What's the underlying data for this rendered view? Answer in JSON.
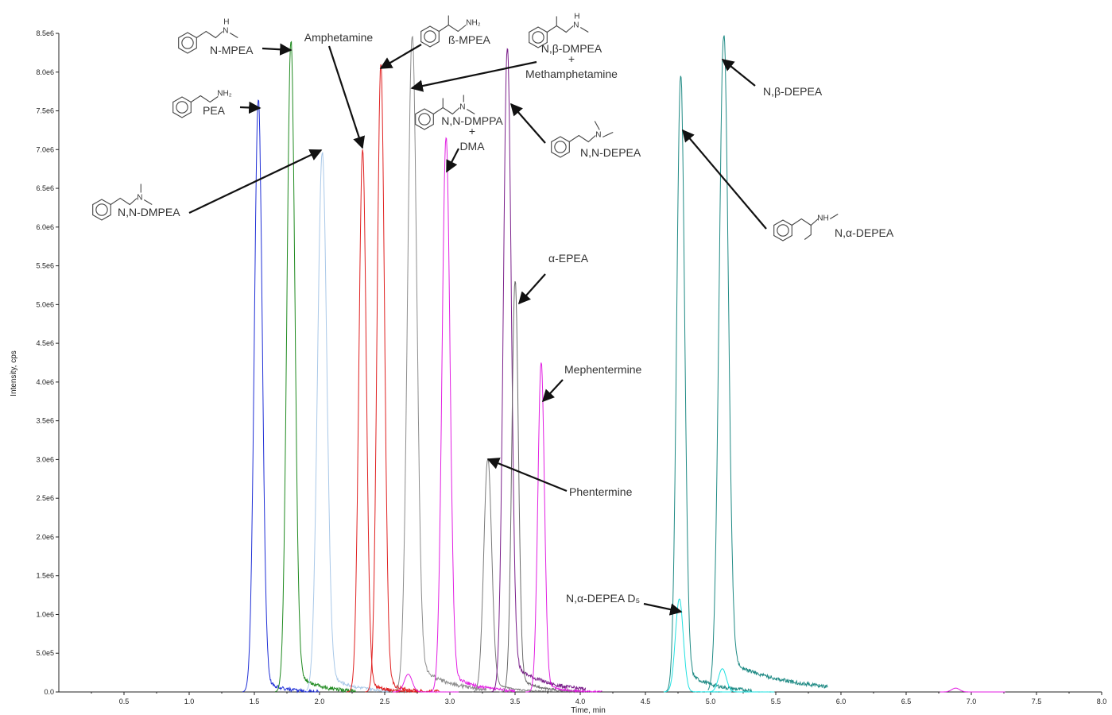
{
  "chart_data": {
    "type": "line",
    "xlabel": "Time, min",
    "ylabel": "Intensity, cps",
    "xlim": [
      0,
      8.0
    ],
    "ylim": [
      0,
      8500000
    ],
    "xticks": [
      "0.5",
      "1.0",
      "1.5",
      "2.0",
      "2.5",
      "3.0",
      "3.5",
      "4.0",
      "4.5",
      "5.0",
      "5.5",
      "6.0",
      "6.5",
      "7.0",
      "7.5",
      "8.0"
    ],
    "xtick_values": [
      0.5,
      1.0,
      1.5,
      2.0,
      2.5,
      3.0,
      3.5,
      4.0,
      4.5,
      5.0,
      5.5,
      6.0,
      6.5,
      7.0,
      7.5,
      8.0
    ],
    "yticks": [
      "0.0",
      "5.0e5",
      "1.0e6",
      "1.5e6",
      "2.0e6",
      "2.5e6",
      "3.0e6",
      "3.5e6",
      "4.0e6",
      "4.5e6",
      "5.0e6",
      "5.5e6",
      "6.0e6",
      "6.5e6",
      "7.0e6",
      "7.5e6",
      "8.0e6",
      "8.5e6"
    ],
    "ytick_values": [
      0,
      500000,
      1000000,
      1500000,
      2000000,
      2500000,
      3000000,
      3500000,
      4000000,
      4500000,
      5000000,
      5500000,
      6000000,
      6500000,
      7000000,
      7500000,
      8000000,
      8500000
    ],
    "peaks": [
      {
        "rt": 1.53,
        "height": 7650000,
        "color": "#1f2fd6",
        "w": 0.03,
        "tail": 0.12,
        "ta": 0.03
      },
      {
        "rt": 1.78,
        "height": 8400000,
        "color": "#1f8a1f",
        "w": 0.03,
        "tail": 0.15,
        "ta": 0.04
      },
      {
        "rt": 2.02,
        "height": 6950000,
        "color": "#a9c8e8",
        "w": 0.035,
        "tail": 0.18,
        "ta": 0.04
      },
      {
        "rt": 2.33,
        "height": 7000000,
        "color": "#e02020",
        "w": 0.028,
        "tail": 0.1,
        "ta": 0.03
      },
      {
        "rt": 2.47,
        "height": 8100000,
        "color": "#e02020",
        "w": 0.028,
        "tail": 0.1,
        "ta": 0.03
      },
      {
        "rt": 2.71,
        "height": 8450000,
        "color": "#8c8c8c",
        "w": 0.035,
        "tail": 0.22,
        "ta": 0.05
      },
      {
        "rt": 2.97,
        "height": 7150000,
        "color": "#e21ee2",
        "w": 0.03,
        "tail": 0.18,
        "ta": 0.04
      },
      {
        "rt": 3.29,
        "height": 3000000,
        "color": "#7a7a7a",
        "w": 0.03,
        "tail": 0.15,
        "ta": 0.05
      },
      {
        "rt": 3.44,
        "height": 8300000,
        "color": "#7a1f8a",
        "w": 0.03,
        "tail": 0.25,
        "ta": 0.05
      },
      {
        "rt": 3.5,
        "height": 5300000,
        "color": "#6a6a6a",
        "w": 0.025,
        "tail": 0.15,
        "ta": 0.04
      },
      {
        "rt": 3.7,
        "height": 4250000,
        "color": "#e21ee2",
        "w": 0.025,
        "tail": 0.12,
        "ta": 0.03
      },
      {
        "rt": 4.77,
        "height": 7950000,
        "color": "#1f8a84",
        "w": 0.03,
        "tail": 0.2,
        "ta": 0.04
      },
      {
        "rt": 5.1,
        "height": 8450000,
        "color": "#1f8a84",
        "w": 0.035,
        "tail": 0.45,
        "ta": 0.05
      },
      {
        "rt": 4.76,
        "height": 1200000,
        "color": "#20e0e0",
        "w": 0.03,
        "tail": 0.05,
        "ta": 0.02
      },
      {
        "rt": 5.09,
        "height": 300000,
        "color": "#20e0e0",
        "w": 0.03,
        "tail": 0.05,
        "ta": 0.02
      },
      {
        "rt": 6.88,
        "height": 50000,
        "color": "#e21ee2",
        "w": 0.03,
        "tail": 0.03,
        "ta": 0.01
      },
      {
        "rt": 2.68,
        "height": 230000,
        "color": "#e21ee2",
        "w": 0.03,
        "tail": 0.04,
        "ta": 0.02
      }
    ],
    "annotations": [
      {
        "id": "pea",
        "lines": [
          "PEA"
        ]
      },
      {
        "id": "nmpea",
        "lines": [
          "N-MPEA"
        ]
      },
      {
        "id": "amph",
        "lines": [
          "Amphetamine"
        ]
      },
      {
        "id": "bmpea",
        "lines": [
          "ß-MPEA"
        ]
      },
      {
        "id": "nbdmpea",
        "lines": [
          "N,β-DMPEA",
          "+",
          "Methamphetamine"
        ]
      },
      {
        "id": "nndmppa",
        "lines": [
          "N,N-DMPPA",
          "+",
          "DMA"
        ]
      },
      {
        "id": "nndepea",
        "lines": [
          "N,N-DEPEA"
        ]
      },
      {
        "id": "nndmpea",
        "lines": [
          "N,N-DMPEA"
        ]
      },
      {
        "id": "aepea",
        "lines": [
          "α-EPEA"
        ]
      },
      {
        "id": "meph",
        "lines": [
          "Mephentermine"
        ]
      },
      {
        "id": "phen",
        "lines": [
          "Phentermine"
        ]
      },
      {
        "id": "nbdepea",
        "lines": [
          "N,β-DEPEA"
        ]
      },
      {
        "id": "nadepea",
        "lines": [
          "N,α-DEPEA"
        ]
      },
      {
        "id": "nadepead5",
        "lines": [
          "N,α-DEPEA D₅"
        ]
      }
    ],
    "structure_labels": {
      "nh": "NH",
      "nh2": "NH₂",
      "n": "N",
      "h": "H"
    }
  }
}
